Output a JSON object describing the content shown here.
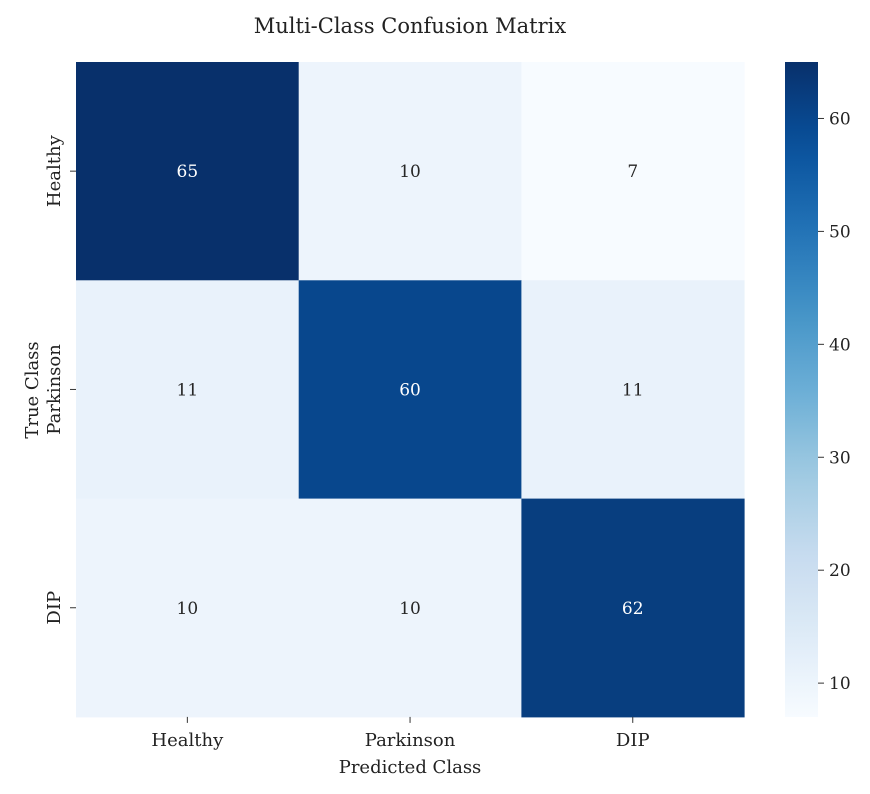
{
  "chart_data": {
    "type": "heatmap",
    "title": "Multi-Class Confusion Matrix",
    "xlabel": "Predicted Class",
    "ylabel": "True Class",
    "x_categories": [
      "Healthy",
      "Parkinson",
      "DIP"
    ],
    "y_categories": [
      "Healthy",
      "Parkinson",
      "DIP"
    ],
    "values": [
      [
        65,
        10,
        7
      ],
      [
        11,
        60,
        11
      ],
      [
        10,
        10,
        62
      ]
    ],
    "colormap": "Blues",
    "color_range": [
      7,
      65
    ],
    "colorbar_ticks": [
      10,
      20,
      30,
      40,
      50,
      60
    ]
  }
}
